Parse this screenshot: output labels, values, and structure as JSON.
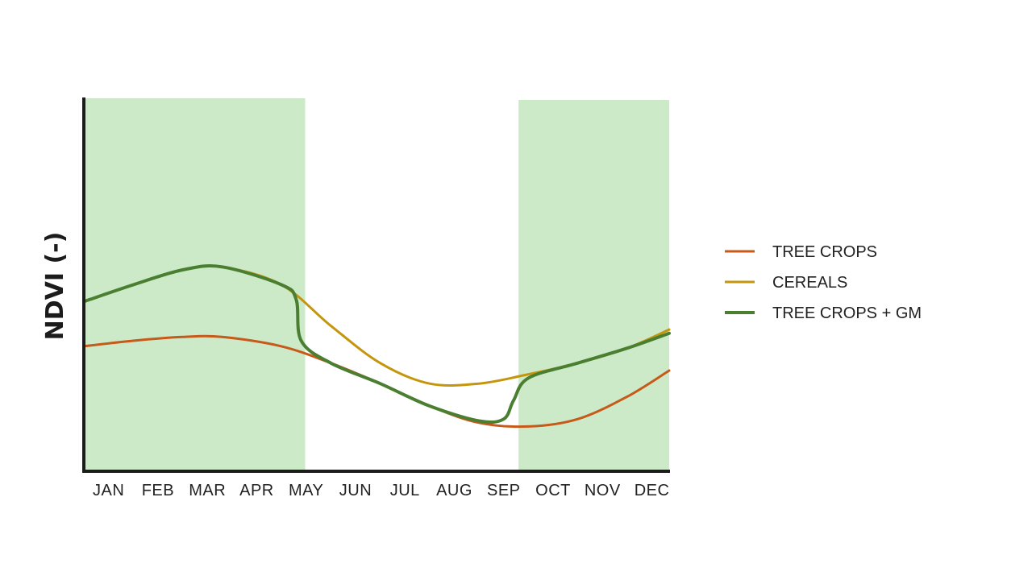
{
  "chart_data": {
    "type": "line",
    "title": "",
    "xlabel": "",
    "ylabel": "NDVI (-)",
    "categories": [
      "JAN",
      "FEB",
      "MAR",
      "APR",
      "MAY",
      "JUN",
      "JUL",
      "AUG",
      "SEP",
      "OCT",
      "NOV",
      "DEC"
    ],
    "x_range": [
      0.5,
      12.35
    ],
    "ylim": [
      0,
      1
    ],
    "y_ticks_shown": false,
    "grid": false,
    "legend": "right",
    "shaded_periods": [
      {
        "from": 0.5,
        "to": 4.98,
        "color": "#cdeac8"
      },
      {
        "from": 9.3,
        "to": 12.35,
        "color": "#cdeac8"
      }
    ],
    "series": [
      {
        "name": "TREE CROPS",
        "color": "#c55a1a",
        "points": [
          [
            0.5,
            0.335
          ],
          [
            1.5,
            0.35
          ],
          [
            2.5,
            0.36
          ],
          [
            3.3,
            0.36
          ],
          [
            4.5,
            0.335
          ],
          [
            5.5,
            0.29
          ],
          [
            6.5,
            0.235
          ],
          [
            7.5,
            0.175
          ],
          [
            8.5,
            0.13
          ],
          [
            9.5,
            0.12
          ],
          [
            10.5,
            0.14
          ],
          [
            11.5,
            0.2
          ],
          [
            12.35,
            0.27
          ]
        ]
      },
      {
        "name": "CEREALS",
        "color": "#c4960e",
        "points": [
          [
            0.5,
            0.455
          ],
          [
            1.5,
            0.5
          ],
          [
            2.5,
            0.54
          ],
          [
            3.3,
            0.548
          ],
          [
            4.5,
            0.5
          ],
          [
            5.5,
            0.39
          ],
          [
            6.5,
            0.29
          ],
          [
            7.5,
            0.235
          ],
          [
            8.5,
            0.235
          ],
          [
            9.5,
            0.26
          ],
          [
            10.5,
            0.29
          ],
          [
            11.5,
            0.33
          ],
          [
            12.35,
            0.38
          ]
        ]
      },
      {
        "name": "TREE CROPS + GM",
        "color": "#4a7f32",
        "points": [
          [
            0.5,
            0.455
          ],
          [
            1.5,
            0.5
          ],
          [
            2.5,
            0.54
          ],
          [
            3.3,
            0.548
          ],
          [
            4.5,
            0.5
          ],
          [
            4.8,
            0.46
          ],
          [
            4.9,
            0.35
          ],
          [
            5.5,
            0.29
          ],
          [
            6.5,
            0.235
          ],
          [
            7.5,
            0.175
          ],
          [
            8.5,
            0.135
          ],
          [
            9.0,
            0.14
          ],
          [
            9.2,
            0.19
          ],
          [
            9.5,
            0.25
          ],
          [
            10.5,
            0.29
          ],
          [
            11.5,
            0.33
          ],
          [
            12.35,
            0.37
          ]
        ]
      }
    ]
  }
}
